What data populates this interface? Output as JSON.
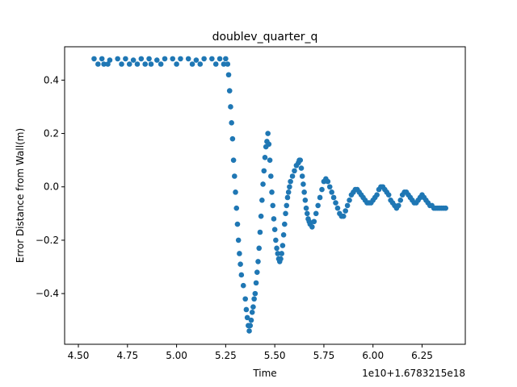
{
  "chart_data": {
    "type": "scatter",
    "title": "doublev_quarter_q",
    "xlabel": "Time",
    "ylabel": "Error Distance from Wall(m)",
    "x_offset_label": "1e10+1.6783215e18",
    "xlim": [
      4.43,
      6.47
    ],
    "ylim": [
      -0.59,
      0.525
    ],
    "xticks": [
      4.5,
      4.75,
      5.0,
      5.25,
      5.5,
      5.75,
      6.0,
      6.25
    ],
    "xtick_labels": [
      "4.50",
      "4.75",
      "5.00",
      "5.25",
      "5.50",
      "5.75",
      "6.00",
      "6.25"
    ],
    "yticks": [
      -0.4,
      -0.2,
      0.0,
      0.2,
      0.4
    ],
    "ytick_labels": [
      "−0.4",
      "−0.2",
      "0.0",
      "0.2",
      "0.4"
    ],
    "grid": false,
    "marker_color": "#1f77b4",
    "series": [
      {
        "points": [
          [
            4.58,
            0.48
          ],
          [
            4.62,
            0.48
          ],
          [
            4.66,
            0.475
          ],
          [
            4.7,
            0.48
          ],
          [
            4.74,
            0.48
          ],
          [
            4.78,
            0.475
          ],
          [
            4.82,
            0.48
          ],
          [
            4.86,
            0.48
          ],
          [
            4.9,
            0.475
          ],
          [
            4.94,
            0.48
          ],
          [
            4.98,
            0.48
          ],
          [
            5.02,
            0.48
          ],
          [
            5.06,
            0.48
          ],
          [
            5.1,
            0.475
          ],
          [
            5.14,
            0.48
          ],
          [
            5.18,
            0.48
          ],
          [
            5.22,
            0.48
          ],
          [
            5.25,
            0.48
          ],
          [
            4.6,
            0.46
          ],
          [
            4.63,
            0.46
          ],
          [
            4.65,
            0.46
          ],
          [
            4.72,
            0.46
          ],
          [
            4.76,
            0.46
          ],
          [
            4.8,
            0.46
          ],
          [
            4.84,
            0.46
          ],
          [
            4.87,
            0.46
          ],
          [
            4.92,
            0.46
          ],
          [
            5.0,
            0.46
          ],
          [
            5.08,
            0.46
          ],
          [
            5.12,
            0.46
          ],
          [
            5.2,
            0.46
          ],
          [
            5.24,
            0.46
          ],
          [
            5.26,
            0.46
          ],
          [
            5.265,
            0.42
          ],
          [
            5.27,
            0.36
          ],
          [
            5.275,
            0.3
          ],
          [
            5.28,
            0.24
          ],
          [
            5.285,
            0.18
          ],
          [
            5.29,
            0.1
          ],
          [
            5.295,
            0.04
          ],
          [
            5.3,
            -0.02
          ],
          [
            5.305,
            -0.08
          ],
          [
            5.31,
            -0.14
          ],
          [
            5.315,
            -0.2
          ],
          [
            5.32,
            -0.25
          ],
          [
            5.325,
            -0.29
          ],
          [
            5.33,
            -0.33
          ],
          [
            5.34,
            -0.37
          ],
          [
            5.35,
            -0.42
          ],
          [
            5.355,
            -0.46
          ],
          [
            5.36,
            -0.49
          ],
          [
            5.365,
            -0.52
          ],
          [
            5.37,
            -0.54
          ],
          [
            5.375,
            -0.52
          ],
          [
            5.38,
            -0.5
          ],
          [
            5.385,
            -0.47
          ],
          [
            5.39,
            -0.45
          ],
          [
            5.395,
            -0.42
          ],
          [
            5.4,
            -0.4
          ],
          [
            5.405,
            -0.36
          ],
          [
            5.41,
            -0.32
          ],
          [
            5.415,
            -0.28
          ],
          [
            5.42,
            -0.23
          ],
          [
            5.425,
            -0.17
          ],
          [
            5.43,
            -0.11
          ],
          [
            5.435,
            -0.05
          ],
          [
            5.44,
            0.01
          ],
          [
            5.445,
            0.06
          ],
          [
            5.45,
            0.11
          ],
          [
            5.455,
            0.15
          ],
          [
            5.46,
            0.17
          ],
          [
            5.465,
            0.2
          ],
          [
            5.47,
            0.16
          ],
          [
            5.475,
            0.1
          ],
          [
            5.48,
            0.04
          ],
          [
            5.485,
            -0.02
          ],
          [
            5.49,
            -0.07
          ],
          [
            5.495,
            -0.12
          ],
          [
            5.5,
            -0.16
          ],
          [
            5.505,
            -0.2
          ],
          [
            5.51,
            -0.23
          ],
          [
            5.515,
            -0.25
          ],
          [
            5.52,
            -0.27
          ],
          [
            5.525,
            -0.28
          ],
          [
            5.53,
            -0.27
          ],
          [
            5.535,
            -0.25
          ],
          [
            5.54,
            -0.22
          ],
          [
            5.545,
            -0.18
          ],
          [
            5.55,
            -0.14
          ],
          [
            5.555,
            -0.1
          ],
          [
            5.56,
            -0.07
          ],
          [
            5.565,
            -0.04
          ],
          [
            5.57,
            -0.02
          ],
          [
            5.575,
            0.0
          ],
          [
            5.58,
            0.02
          ],
          [
            5.59,
            0.04
          ],
          [
            5.6,
            0.06
          ],
          [
            5.61,
            0.08
          ],
          [
            5.62,
            0.09
          ],
          [
            5.625,
            0.1
          ],
          [
            5.63,
            0.1
          ],
          [
            5.635,
            0.07
          ],
          [
            5.64,
            0.04
          ],
          [
            5.645,
            0.01
          ],
          [
            5.65,
            -0.02
          ],
          [
            5.655,
            -0.05
          ],
          [
            5.66,
            -0.08
          ],
          [
            5.665,
            -0.1
          ],
          [
            5.67,
            -0.12
          ],
          [
            5.675,
            -0.13
          ],
          [
            5.68,
            -0.14
          ],
          [
            5.69,
            -0.15
          ],
          [
            5.7,
            -0.13
          ],
          [
            5.71,
            -0.1
          ],
          [
            5.72,
            -0.07
          ],
          [
            5.73,
            -0.04
          ],
          [
            5.74,
            -0.01
          ],
          [
            5.75,
            0.02
          ],
          [
            5.76,
            0.03
          ],
          [
            5.77,
            0.02
          ],
          [
            5.78,
            0.0
          ],
          [
            5.79,
            -0.02
          ],
          [
            5.8,
            -0.04
          ],
          [
            5.81,
            -0.06
          ],
          [
            5.82,
            -0.08
          ],
          [
            5.83,
            -0.1
          ],
          [
            5.84,
            -0.11
          ],
          [
            5.85,
            -0.11
          ],
          [
            5.86,
            -0.09
          ],
          [
            5.87,
            -0.07
          ],
          [
            5.88,
            -0.05
          ],
          [
            5.89,
            -0.03
          ],
          [
            5.9,
            -0.02
          ],
          [
            5.91,
            -0.01
          ],
          [
            5.92,
            -0.01
          ],
          [
            5.93,
            -0.02
          ],
          [
            5.94,
            -0.03
          ],
          [
            5.95,
            -0.04
          ],
          [
            5.96,
            -0.05
          ],
          [
            5.97,
            -0.06
          ],
          [
            5.98,
            -0.06
          ],
          [
            5.99,
            -0.06
          ],
          [
            6.0,
            -0.05
          ],
          [
            6.01,
            -0.04
          ],
          [
            6.02,
            -0.03
          ],
          [
            6.03,
            -0.01
          ],
          [
            6.04,
            0.0
          ],
          [
            6.05,
            0.0
          ],
          [
            6.06,
            -0.01
          ],
          [
            6.07,
            -0.02
          ],
          [
            6.08,
            -0.03
          ],
          [
            6.09,
            -0.05
          ],
          [
            6.1,
            -0.06
          ],
          [
            6.11,
            -0.07
          ],
          [
            6.12,
            -0.08
          ],
          [
            6.13,
            -0.07
          ],
          [
            6.14,
            -0.05
          ],
          [
            6.15,
            -0.03
          ],
          [
            6.16,
            -0.02
          ],
          [
            6.17,
            -0.02
          ],
          [
            6.18,
            -0.03
          ],
          [
            6.19,
            -0.04
          ],
          [
            6.2,
            -0.05
          ],
          [
            6.21,
            -0.06
          ],
          [
            6.22,
            -0.06
          ],
          [
            6.23,
            -0.05
          ],
          [
            6.24,
            -0.04
          ],
          [
            6.25,
            -0.03
          ],
          [
            6.26,
            -0.04
          ],
          [
            6.27,
            -0.05
          ],
          [
            6.28,
            -0.06
          ],
          [
            6.29,
            -0.07
          ],
          [
            6.3,
            -0.07
          ],
          [
            6.31,
            -0.08
          ],
          [
            6.32,
            -0.08
          ],
          [
            6.33,
            -0.08
          ],
          [
            6.34,
            -0.08
          ],
          [
            6.35,
            -0.08
          ],
          [
            6.36,
            -0.08
          ],
          [
            6.37,
            -0.08
          ]
        ]
      }
    ]
  }
}
